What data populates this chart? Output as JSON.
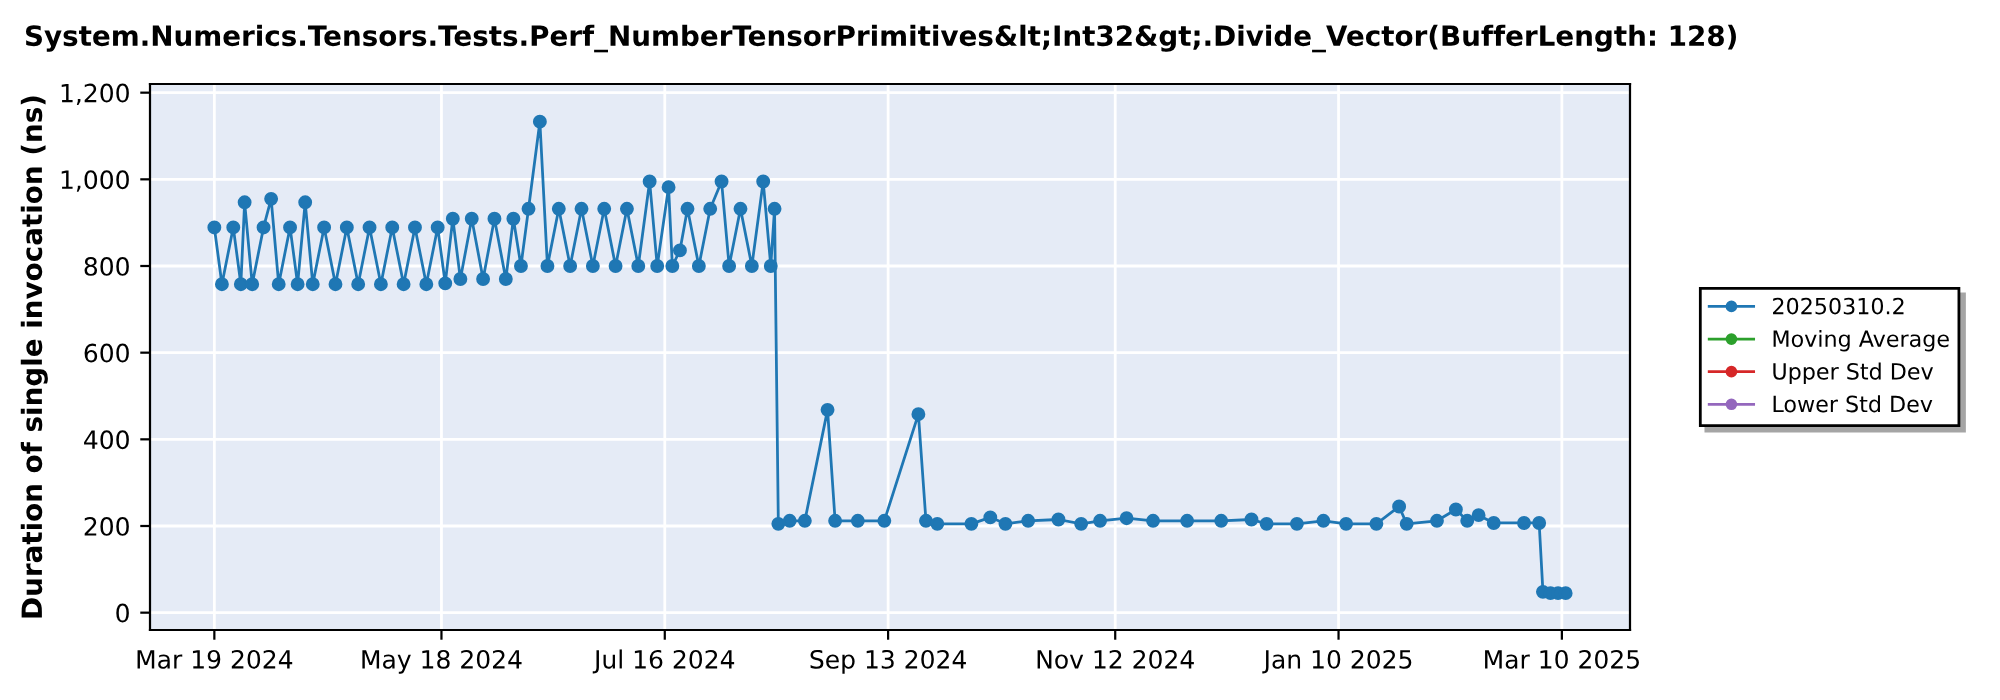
{
  "chart_data": {
    "type": "line",
    "title": "System.Numerics.Tensors.Tests.Perf_NumberTensorPrimitives&lt;Int32&gt;.Divide_Vector(BufferLength: 128)",
    "ylabel": "Duration of single invocation (ns)",
    "xlim": [
      "2024-03-02",
      "2025-03-28"
    ],
    "xticks": [
      {
        "value": "2024-03-19",
        "label": "Mar 19 2024"
      },
      {
        "value": "2024-05-18",
        "label": "May 18 2024"
      },
      {
        "value": "2024-07-16",
        "label": "Jul 16 2024"
      },
      {
        "value": "2024-09-13",
        "label": "Sep 13 2024"
      },
      {
        "value": "2024-11-12",
        "label": "Nov 12 2024"
      },
      {
        "value": "2025-01-10",
        "label": "Jan 10 2025"
      },
      {
        "value": "2025-03-10",
        "label": "Mar 10 2025"
      }
    ],
    "ylim": [
      -40,
      1220
    ],
    "yticks": [
      0,
      200,
      400,
      600,
      800,
      {
        "value": 1000,
        "label": "1,000"
      },
      {
        "value": 1200,
        "label": "1,200"
      }
    ],
    "grid": true,
    "legend": "right",
    "marker": "circle",
    "line_style": "solid",
    "series": [
      {
        "name": "20250310.2",
        "color": "#1f77b4",
        "x": [
          "2024-03-19",
          "2024-03-21",
          "2024-03-24",
          "2024-03-26",
          "2024-03-27",
          "2024-03-29",
          "2024-04-01",
          "2024-04-03",
          "2024-04-05",
          "2024-04-08",
          "2024-04-10",
          "2024-04-12",
          "2024-04-14",
          "2024-04-17",
          "2024-04-20",
          "2024-04-23",
          "2024-04-26",
          "2024-04-29",
          "2024-05-02",
          "2024-05-05",
          "2024-05-08",
          "2024-05-11",
          "2024-05-14",
          "2024-05-17",
          "2024-05-19",
          "2024-05-21",
          "2024-05-23",
          "2024-05-26",
          "2024-05-29",
          "2024-06-01",
          "2024-06-04",
          "2024-06-06",
          "2024-06-08",
          "2024-06-10",
          "2024-06-13",
          "2024-06-15",
          "2024-06-18",
          "2024-06-21",
          "2024-06-24",
          "2024-06-27",
          "2024-06-30",
          "2024-07-03",
          "2024-07-06",
          "2024-07-09",
          "2024-07-12",
          "2024-07-14",
          "2024-07-17",
          "2024-07-18",
          "2024-07-20",
          "2024-07-22",
          "2024-07-25",
          "2024-07-28",
          "2024-07-31",
          "2024-08-02",
          "2024-08-05",
          "2024-08-08",
          "2024-08-11",
          "2024-08-13",
          "2024-08-14",
          "2024-08-15",
          "2024-08-18",
          "2024-08-22",
          "2024-08-28",
          "2024-08-30",
          "2024-09-05",
          "2024-09-12",
          "2024-09-21",
          "2024-09-23",
          "2024-09-26",
          "2024-10-05",
          "2024-10-10",
          "2024-10-14",
          "2024-10-20",
          "2024-10-28",
          "2024-11-03",
          "2024-11-08",
          "2024-11-15",
          "2024-11-22",
          "2024-12-01",
          "2024-12-10",
          "2024-12-18",
          "2024-12-22",
          "2024-12-30",
          "2025-01-06",
          "2025-01-12",
          "2025-01-20",
          "2025-01-26",
          "2025-01-28",
          "2025-02-05",
          "2025-02-10",
          "2025-02-13",
          "2025-02-16",
          "2025-02-20",
          "2025-02-28",
          "2025-03-04",
          "2025-03-05",
          "2025-03-07",
          "2025-03-09",
          "2025-03-11"
        ],
        "values": [
          889,
          758,
          889,
          758,
          947,
          758,
          889,
          955,
          758,
          889,
          758,
          947,
          758,
          889,
          758,
          889,
          758,
          889,
          758,
          889,
          758,
          889,
          758,
          889,
          760,
          909,
          770,
          909,
          770,
          909,
          770,
          909,
          800,
          932,
          1133,
          800,
          932,
          800,
          932,
          800,
          932,
          800,
          932,
          800,
          995,
          800,
          982,
          800,
          836,
          932,
          800,
          932,
          995,
          800,
          932,
          800,
          995,
          800,
          932,
          205,
          212,
          212,
          468,
          212,
          212,
          212,
          458,
          212,
          205,
          205,
          220,
          205,
          212,
          215,
          205,
          212,
          218,
          212,
          212,
          212,
          215,
          205,
          205,
          212,
          205,
          205,
          245,
          205,
          212,
          238,
          212,
          225,
          207,
          207,
          207,
          48,
          45,
          45,
          45
        ]
      },
      {
        "name": "Moving Average",
        "color": "#2ca02c"
      },
      {
        "name": "Upper Std Dev",
        "color": "#d62728"
      },
      {
        "name": "Lower Std Dev",
        "color": "#9467bd"
      }
    ]
  }
}
